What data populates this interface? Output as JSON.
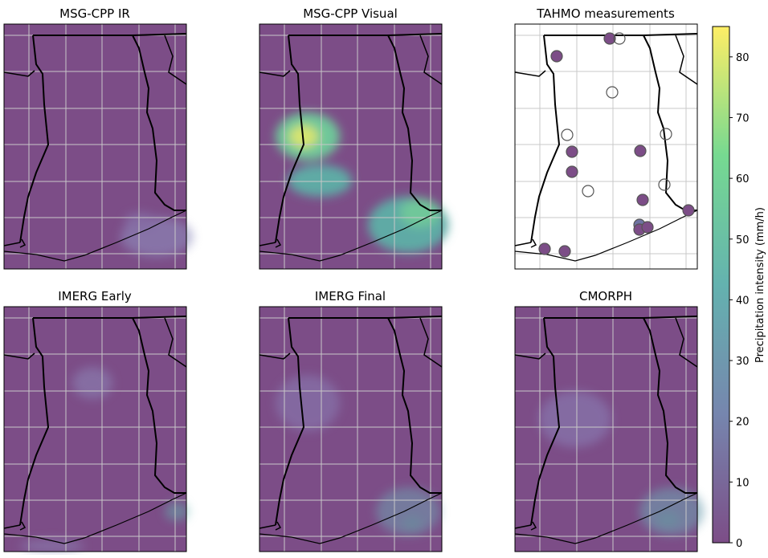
{
  "panels": [
    {
      "title": "MSG-CPP IR"
    },
    {
      "title": "MSG-CPP Visual"
    },
    {
      "title": "TAHMO measurements"
    },
    {
      "title": "IMERG Early"
    },
    {
      "title": "IMERG Final"
    },
    {
      "title": "CMORPH"
    }
  ],
  "colorbar": {
    "label": "Precipitation intensity (mm/h)",
    "lim": [
      0,
      85
    ],
    "ticks": [
      0,
      10,
      20,
      30,
      40,
      50,
      60,
      70,
      80
    ]
  }
}
